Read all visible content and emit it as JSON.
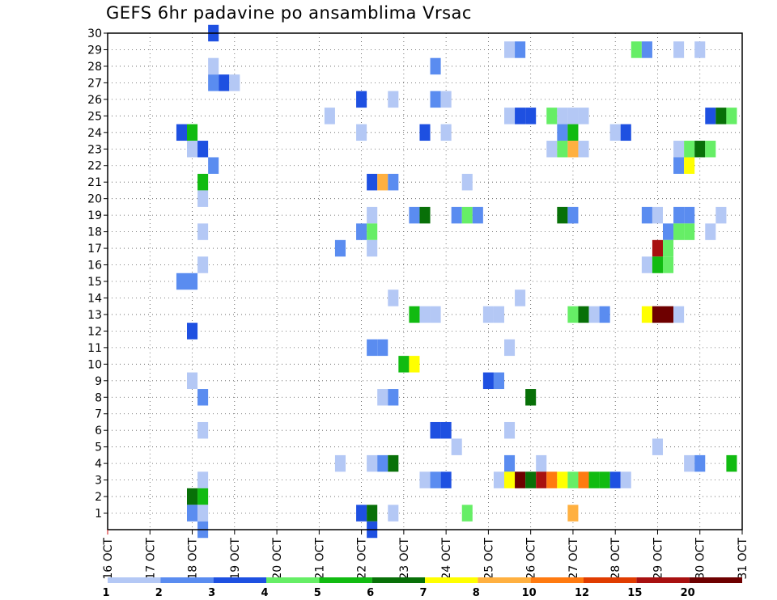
{
  "chart_data": {
    "type": "heatmap",
    "title": "GEFS 6hr padavine po ansamblima Vrsac",
    "xlabel": "",
    "ylabel": "",
    "x_tick_labels": [
      "16 OCT",
      "17 OCT",
      "18 OCT",
      "19 OCT",
      "20 OCT",
      "21 OCT",
      "22 OCT",
      "23 OCT",
      "24 OCT",
      "25 OCT",
      "26 OCT",
      "27 OCT",
      "28 OCT",
      "29 OCT",
      "30 OCT",
      "31 OCT"
    ],
    "x_range_days": [
      16,
      31
    ],
    "y_tick_labels": [
      "1",
      "2",
      "3",
      "4",
      "5",
      "6",
      "7",
      "8",
      "9",
      "10",
      "11",
      "12",
      "13",
      "14",
      "15",
      "16",
      "17",
      "18",
      "19",
      "20",
      "21",
      "22",
      "23",
      "24",
      "25",
      "26",
      "27",
      "28",
      "29",
      "30"
    ],
    "y_range": [
      0,
      30
    ],
    "grid": true,
    "step_hours": 6,
    "color_scale": {
      "labels": [
        "1",
        "2",
        "3",
        "4",
        "5",
        "6",
        "7",
        "8",
        "10",
        "12",
        "15",
        "20"
      ],
      "colors": [
        "#b4c8f5",
        "#5a8cf0",
        "#1e50e1",
        "#66ee66",
        "#11bb11",
        "#087008",
        "#ffff00",
        "#ffb040",
        "#ff7a10",
        "#e03c00",
        "#a81010",
        "#6e0000"
      ]
    },
    "cells": [
      [
        18.5,
        30,
        3.5
      ],
      [
        29.5,
        29,
        1
      ],
      [
        25.5,
        29,
        1
      ],
      [
        25.75,
        29,
        2
      ],
      [
        28.5,
        29,
        4
      ],
      [
        28.75,
        29,
        2
      ],
      [
        30,
        29,
        1
      ],
      [
        18.5,
        28,
        1
      ],
      [
        23.75,
        28,
        2
      ],
      [
        18.5,
        27,
        2
      ],
      [
        18.75,
        27,
        3
      ],
      [
        19,
        27,
        1
      ],
      [
        22,
        26,
        3
      ],
      [
        22.75,
        26,
        1
      ],
      [
        23.75,
        26,
        2
      ],
      [
        24,
        26,
        1
      ],
      [
        21.25,
        25,
        1
      ],
      [
        25.5,
        25,
        1
      ],
      [
        25.75,
        25,
        3
      ],
      [
        26,
        25,
        3
      ],
      [
        26.5,
        25,
        4
      ],
      [
        26.75,
        25,
        1
      ],
      [
        27,
        25,
        1
      ],
      [
        27.25,
        25,
        1
      ],
      [
        30.25,
        25,
        3
      ],
      [
        30.5,
        25,
        6
      ],
      [
        30.75,
        25,
        4.5
      ],
      [
        17.75,
        24,
        3
      ],
      [
        18,
        24,
        5
      ],
      [
        22,
        24,
        1
      ],
      [
        23.5,
        24,
        3
      ],
      [
        24,
        24,
        1
      ],
      [
        26.75,
        24,
        2
      ],
      [
        27,
        24,
        5
      ],
      [
        28,
        24,
        1
      ],
      [
        28.25,
        24,
        3
      ],
      [
        18,
        23,
        1
      ],
      [
        18.25,
        23,
        3
      ],
      [
        26.5,
        23,
        1
      ],
      [
        26.75,
        23,
        4
      ],
      [
        27,
        23,
        8
      ],
      [
        27.25,
        23,
        1
      ],
      [
        29.5,
        23,
        1
      ],
      [
        29.75,
        23,
        4
      ],
      [
        30,
        23,
        6
      ],
      [
        30.25,
        23,
        4
      ],
      [
        18.5,
        22,
        2
      ],
      [
        29.5,
        22,
        2
      ],
      [
        29.75,
        22,
        7
      ],
      [
        18.25,
        21,
        5
      ],
      [
        22.25,
        21,
        3
      ],
      [
        22.5,
        21,
        8
      ],
      [
        22.75,
        21,
        2
      ],
      [
        24.5,
        21,
        1
      ],
      [
        18.25,
        20,
        1
      ],
      [
        22.25,
        19,
        1
      ],
      [
        23.25,
        19,
        2
      ],
      [
        23.5,
        19,
        6
      ],
      [
        24.25,
        19,
        2
      ],
      [
        24.5,
        19,
        4
      ],
      [
        24.75,
        19,
        2
      ],
      [
        26.75,
        19,
        6
      ],
      [
        27,
        19,
        2
      ],
      [
        28.75,
        19,
        2
      ],
      [
        29,
        19,
        1
      ],
      [
        29.5,
        19,
        2
      ],
      [
        29.75,
        19,
        2
      ],
      [
        30.5,
        19,
        1
      ],
      [
        18.25,
        18,
        1
      ],
      [
        22,
        18,
        2
      ],
      [
        22.25,
        18,
        4
      ],
      [
        29.25,
        18,
        2
      ],
      [
        29.5,
        18,
        4
      ],
      [
        29.75,
        18,
        4
      ],
      [
        30.25,
        18,
        1
      ],
      [
        21.5,
        17,
        2
      ],
      [
        22.25,
        17,
        1
      ],
      [
        29,
        17,
        15
      ],
      [
        29.25,
        17,
        4
      ],
      [
        18.25,
        16,
        1
      ],
      [
        28.75,
        16,
        1
      ],
      [
        29,
        16,
        5
      ],
      [
        29.25,
        16,
        4
      ],
      [
        17.75,
        15,
        2
      ],
      [
        18,
        15,
        2
      ],
      [
        22.75,
        14,
        1
      ],
      [
        25.75,
        14,
        1
      ],
      [
        23.25,
        13,
        5
      ],
      [
        23.5,
        13,
        1
      ],
      [
        23.75,
        13,
        1
      ],
      [
        25,
        13,
        1
      ],
      [
        25.25,
        13,
        1
      ],
      [
        27,
        13,
        4
      ],
      [
        27.25,
        13,
        6
      ],
      [
        27.5,
        13,
        1
      ],
      [
        27.75,
        13,
        2
      ],
      [
        28.75,
        13,
        7
      ],
      [
        29,
        13,
        20
      ],
      [
        29.25,
        13,
        20
      ],
      [
        29.5,
        13,
        1
      ],
      [
        18,
        12,
        3
      ],
      [
        22.25,
        11,
        2
      ],
      [
        22.5,
        11,
        2
      ],
      [
        25.5,
        11,
        1
      ],
      [
        23,
        10,
        5
      ],
      [
        23.25,
        10,
        7
      ],
      [
        18,
        9,
        1
      ],
      [
        25,
        9,
        3
      ],
      [
        25.25,
        9,
        2
      ],
      [
        18.25,
        8,
        2
      ],
      [
        22.5,
        8,
        1
      ],
      [
        22.75,
        8,
        2
      ],
      [
        26,
        8,
        6
      ],
      [
        18.25,
        6,
        1
      ],
      [
        23.75,
        6,
        3
      ],
      [
        24,
        6,
        3
      ],
      [
        25.5,
        6,
        1
      ],
      [
        24.25,
        5,
        1
      ],
      [
        29,
        5,
        1
      ],
      [
        21.5,
        4,
        1
      ],
      [
        22.25,
        4,
        1
      ],
      [
        22.5,
        4,
        2
      ],
      [
        22.75,
        4,
        6
      ],
      [
        25.5,
        4,
        2
      ],
      [
        26.25,
        4,
        1
      ],
      [
        29.75,
        4,
        1
      ],
      [
        30,
        4,
        2
      ],
      [
        30.75,
        4,
        5
      ],
      [
        18.25,
        3,
        1
      ],
      [
        23.5,
        3,
        1
      ],
      [
        23.75,
        3,
        2
      ],
      [
        24,
        3,
        3
      ],
      [
        25.25,
        3,
        1
      ],
      [
        25.5,
        3,
        7
      ],
      [
        25.75,
        3,
        20
      ],
      [
        26,
        3,
        6
      ],
      [
        26.25,
        3,
        15
      ],
      [
        26.5,
        3,
        10
      ],
      [
        26.75,
        3,
        7
      ],
      [
        27,
        3,
        4
      ],
      [
        27.25,
        3,
        10
      ],
      [
        27.5,
        3,
        5
      ],
      [
        27.75,
        3,
        5
      ],
      [
        28,
        3,
        3
      ],
      [
        28.25,
        3,
        1
      ],
      [
        18,
        2,
        6
      ],
      [
        18.25,
        2,
        5
      ],
      [
        18,
        1,
        2
      ],
      [
        18.25,
        1,
        1
      ],
      [
        22,
        1,
        3
      ],
      [
        22.25,
        1,
        6
      ],
      [
        22.75,
        1,
        1
      ],
      [
        24.5,
        1,
        4
      ],
      [
        27,
        1,
        8
      ],
      [
        18.25,
        0,
        2
      ],
      [
        22.25,
        0,
        3
      ]
    ]
  }
}
